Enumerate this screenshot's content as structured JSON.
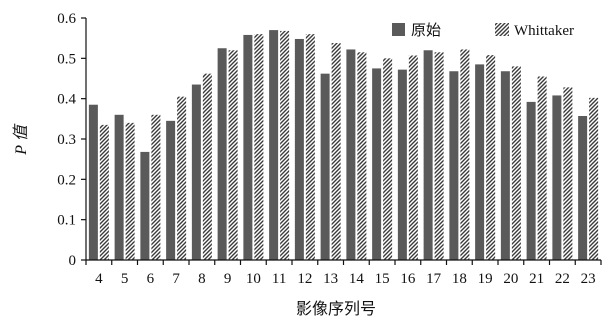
{
  "chart_data": {
    "type": "bar",
    "categories": [
      "4",
      "5",
      "6",
      "7",
      "8",
      "9",
      "10",
      "11",
      "12",
      "13",
      "14",
      "15",
      "16",
      "17",
      "18",
      "19",
      "20",
      "21",
      "22",
      "23"
    ],
    "series": [
      {
        "name": "原始",
        "values": [
          0.385,
          0.36,
          0.268,
          0.345,
          0.435,
          0.525,
          0.558,
          0.57,
          0.548,
          0.462,
          0.522,
          0.475,
          0.472,
          0.52,
          0.468,
          0.485,
          0.468,
          0.392,
          0.408,
          0.357
        ],
        "color": "#5a5a5a",
        "pattern": "solid"
      },
      {
        "name": "Whittaker",
        "values": [
          0.335,
          0.34,
          0.36,
          0.405,
          0.462,
          0.52,
          0.56,
          0.568,
          0.56,
          0.538,
          0.515,
          0.5,
          0.507,
          0.515,
          0.522,
          0.508,
          0.48,
          0.455,
          0.428,
          0.402
        ],
        "color": "#3a3a3a",
        "pattern": "diagonal-hatch"
      }
    ],
    "yticks": [
      "0",
      "0.1",
      "0.2",
      "0.3",
      "0.4",
      "0.5",
      "0.6"
    ],
    "ylim": [
      0,
      0.6
    ],
    "xlabel": "影像序列号",
    "ylabel": "P 值",
    "legend_position": "top-right",
    "grid": false
  }
}
